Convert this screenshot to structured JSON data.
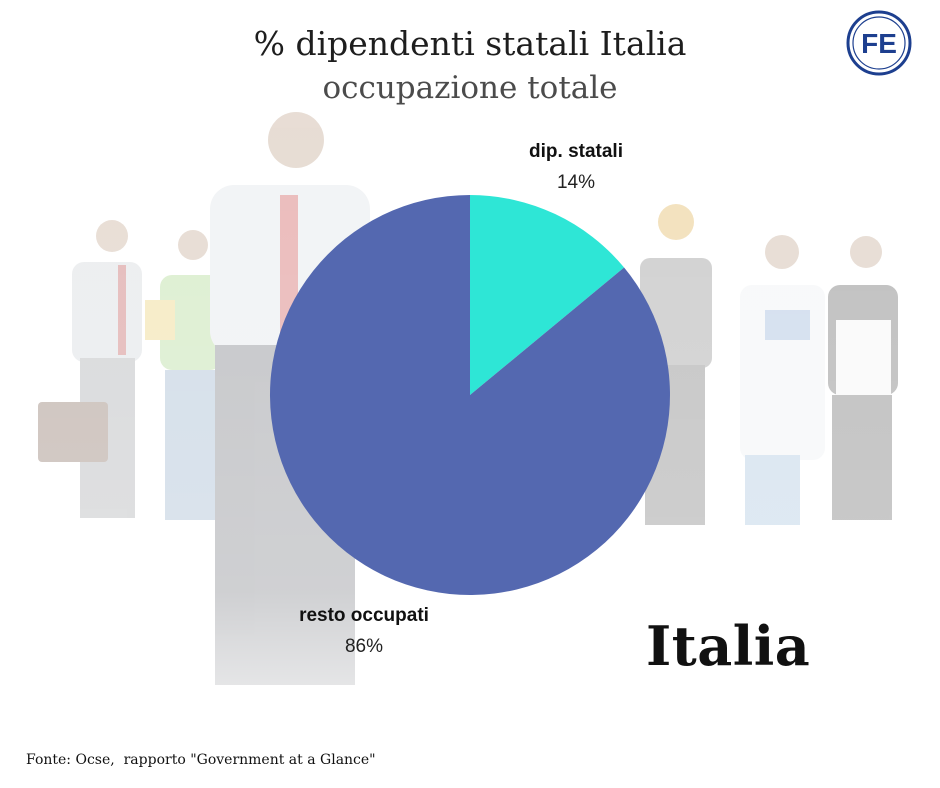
{
  "header": {
    "title": "% dipendenti statali Italia",
    "subtitle": "occupazione totale"
  },
  "logo": {
    "text": "FE",
    "color": "#1d3f8f"
  },
  "country_label": "Italia",
  "source_note": "Fonte: Ocse,  rapporto \"Government at a Glance\"",
  "chart_data": {
    "type": "pie",
    "title": "% dipendenti statali Italia",
    "subtitle": "occupazione totale",
    "slices": [
      {
        "label": "dip. statali",
        "value": 14,
        "display": "14%",
        "color": "#2ee6d6"
      },
      {
        "label": "resto occupati",
        "value": 86,
        "display": "86%",
        "color": "#5468b0"
      }
    ],
    "start_angle_deg": 0,
    "direction": "clockwise",
    "legend": "none"
  }
}
